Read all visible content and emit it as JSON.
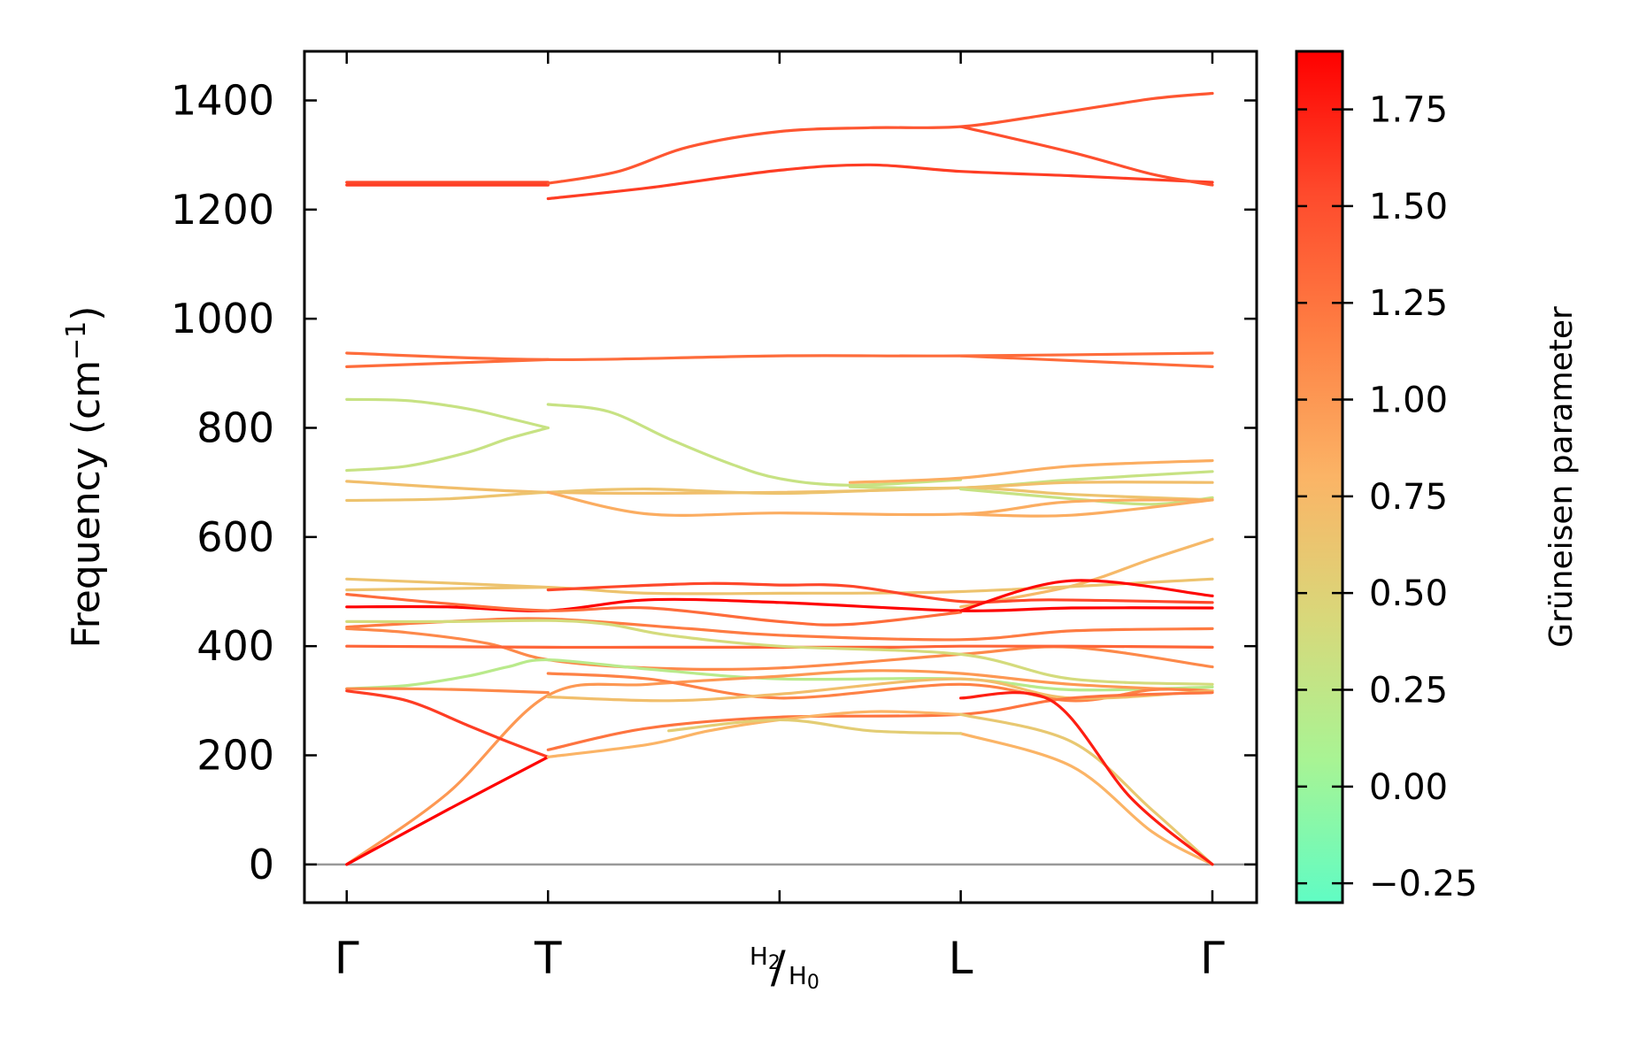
{
  "chart_data": {
    "type": "line",
    "title": "",
    "ylabel": "Frequency (cm⁻¹)",
    "ylabel_main": "Frequency (cm",
    "ylabel_sup": "−1",
    "ylabel_close": ")",
    "xlabel": "",
    "ylim": [
      -70,
      1490
    ],
    "yticks": [
      0,
      200,
      400,
      600,
      800,
      1000,
      1200,
      1400
    ],
    "ytick_labels": [
      "0",
      "200",
      "400",
      "600",
      "800",
      "1000",
      "1200",
      "1400"
    ],
    "kpoints": [
      {
        "pos": 0.0,
        "label": "Γ"
      },
      {
        "pos": 1.0,
        "label": "T"
      },
      {
        "pos": 2.15,
        "label": "H2/H0",
        "num": "H",
        "num_sub": "2",
        "den": "H",
        "den_sub": "0"
      },
      {
        "pos": 3.05,
        "label": "L"
      },
      {
        "pos": 4.3,
        "label": "Γ"
      }
    ],
    "xlim": [
      -0.21,
      4.52
    ],
    "zero_line": {
      "value": 0,
      "color": "#999999"
    },
    "colorbar": {
      "label": "Grüneisen parameter",
      "range": [
        -0.3,
        1.9
      ],
      "ticks": [
        -0.25,
        0.0,
        0.25,
        0.5,
        0.75,
        1.0,
        1.25,
        1.5,
        1.75
      ],
      "tick_labels": [
        "−0.25",
        "0.00",
        "0.25",
        "0.50",
        "0.75",
        "1.00",
        "1.25",
        "1.50",
        "1.75"
      ],
      "colormap": [
        "#60fcc4",
        "#a8f494",
        "#d8d87a",
        "#fbb466",
        "#fe8044",
        "#fe4a2c",
        "#fe0000"
      ]
    },
    "series": [
      {
        "g": 1.55,
        "x": [
          0,
          1
        ],
        "y": [
          1250,
          1250
        ]
      },
      {
        "g": 1.6,
        "x": [
          0,
          1
        ],
        "y": [
          1245,
          1245
        ]
      },
      {
        "g": 1.45,
        "x": [
          1,
          1.35,
          1.7,
          2.15,
          2.6,
          3.05,
          3.5,
          4.0,
          4.3
        ],
        "y": [
          1248,
          1270,
          1315,
          1343,
          1350,
          1352,
          1375,
          1403,
          1413
        ]
      },
      {
        "g": 1.6,
        "x": [
          1,
          1.5,
          2.15,
          2.6,
          3.05,
          3.6,
          4.0,
          4.3
        ],
        "y": [
          1220,
          1240,
          1272,
          1282,
          1270,
          1262,
          1255,
          1250
        ]
      },
      {
        "g": 1.5,
        "x": [
          3.05,
          3.6,
          4.0,
          4.3
        ],
        "y": [
          1352,
          1305,
          1265,
          1245
        ]
      },
      {
        "g": 1.3,
        "x": [
          0,
          1,
          2.15,
          3.05,
          4.3
        ],
        "y": [
          937,
          925,
          932,
          932,
          937
        ]
      },
      {
        "g": 1.3,
        "x": [
          0,
          1
        ],
        "y": [
          912,
          925
        ]
      },
      {
        "g": 1.3,
        "x": [
          3.05,
          4.3
        ],
        "y": [
          932,
          912
        ]
      },
      {
        "g": 0.3,
        "x": [
          0,
          0.3,
          0.6,
          0.8,
          1
        ],
        "y": [
          852,
          850,
          835,
          818,
          800
        ]
      },
      {
        "g": 0.3,
        "x": [
          0,
          0.3,
          0.6,
          0.8,
          1
        ],
        "y": [
          722,
          730,
          755,
          780,
          800
        ]
      },
      {
        "g": 0.3,
        "x": [
          1,
          1.3,
          1.6,
          1.9,
          2.15,
          2.5,
          3.05
        ],
        "y": [
          843,
          830,
          780,
          735,
          707,
          695,
          705
        ]
      },
      {
        "g": 0.3,
        "x": [
          2.5,
          3.05,
          3.6,
          4.3
        ],
        "y": [
          692,
          690,
          705,
          720
        ]
      },
      {
        "g": 0.85,
        "x": [
          2.5,
          3.05,
          3.6,
          4.3
        ],
        "y": [
          700,
          708,
          730,
          740
        ]
      },
      {
        "g": 0.7,
        "x": [
          0,
          1,
          2.15,
          3.05,
          3.6,
          4.3
        ],
        "y": [
          702,
          682,
          682,
          690,
          700,
          700
        ]
      },
      {
        "g": 0.65,
        "x": [
          0,
          0.5,
          1,
          1.5,
          2.15,
          3.05,
          3.6,
          4.3
        ],
        "y": [
          667,
          670,
          682,
          688,
          680,
          690,
          678,
          668
        ]
      },
      {
        "g": 0.3,
        "x": [
          3.05,
          3.6,
          4.0,
          4.3
        ],
        "y": [
          688,
          670,
          660,
          672
        ]
      },
      {
        "g": 0.85,
        "x": [
          1,
          1.5,
          2.15,
          3.05,
          3.6,
          4.3
        ],
        "y": [
          682,
          642,
          644,
          642,
          665,
          668
        ]
      },
      {
        "g": 0.85,
        "x": [
          3.05,
          3.6,
          4.3
        ],
        "y": [
          642,
          640,
          668
        ]
      },
      {
        "g": 0.75,
        "x": [
          3.05,
          3.6,
          4.0,
          4.3
        ],
        "y": [
          472,
          510,
          560,
          596
        ]
      },
      {
        "g": 0.65,
        "x": [
          0,
          1,
          1.5,
          2.15,
          3.05,
          4.3
        ],
        "y": [
          523,
          508,
          497,
          497,
          500,
          523
        ]
      },
      {
        "g": 0.65,
        "x": [
          0,
          1
        ],
        "y": [
          503,
          508
        ]
      },
      {
        "g": 1.55,
        "x": [
          1,
          1.4,
          1.8,
          2.15,
          2.5,
          3.05,
          3.5,
          4.3
        ],
        "y": [
          503,
          510,
          515,
          512,
          510,
          482,
          485,
          480
        ]
      },
      {
        "g": 1.9,
        "x": [
          0,
          0.5,
          1,
          1.5,
          2.15,
          3.05,
          3.6,
          4.3
        ],
        "y": [
          472,
          472,
          465,
          485,
          480,
          465,
          470,
          470
        ]
      },
      {
        "g": 1.3,
        "x": [
          0,
          0.5,
          1,
          1.5,
          2.15,
          2.5,
          3.05
        ],
        "y": [
          495,
          478,
          465,
          470,
          445,
          440,
          462
        ]
      },
      {
        "g": 1.85,
        "x": [
          3.05,
          3.6,
          4.3
        ],
        "y": [
          465,
          520,
          492
        ]
      },
      {
        "g": 1.2,
        "x": [
          0,
          0.5,
          1,
          1.7,
          2.15,
          3.05,
          3.6,
          4.3
        ],
        "y": [
          435,
          445,
          450,
          432,
          420,
          412,
          428,
          432
        ]
      },
      {
        "g": 1.1,
        "x": [
          0,
          0.3,
          0.7,
          1,
          1.5,
          2.15,
          3.05,
          3.6,
          4.3
        ],
        "y": [
          432,
          425,
          405,
          375,
          360,
          360,
          385,
          398,
          362
        ]
      },
      {
        "g": 1.35,
        "x": [
          0,
          1,
          1.5,
          2.15,
          2.7,
          3.05,
          3.6,
          4.3
        ],
        "y": [
          400,
          398,
          398,
          398,
          398,
          400,
          400,
          398
        ]
      },
      {
        "g": 0.4,
        "x": [
          0,
          0.5,
          1,
          1.3,
          1.6,
          2.15,
          3.05,
          3.6,
          4.3
        ],
        "y": [
          445,
          445,
          447,
          440,
          420,
          400,
          385,
          340,
          330
        ]
      },
      {
        "g": 0.2,
        "x": [
          0,
          0.3,
          0.6,
          0.8,
          1,
          1.5,
          2.15,
          3.05,
          3.6,
          4.3
        ],
        "y": [
          322,
          328,
          345,
          362,
          375,
          358,
          340,
          340,
          320,
          325
        ]
      },
      {
        "g": 1.1,
        "x": [
          0,
          0.3,
          0.6,
          1
        ],
        "y": [
          322,
          322,
          320,
          315
        ]
      },
      {
        "g": 1.0,
        "x": [
          0,
          0.5,
          1,
          1.5,
          2.15,
          2.6,
          3.05,
          3.6,
          4.3
        ],
        "y": [
          0,
          130,
          310,
          330,
          345,
          355,
          350,
          330,
          318
        ]
      },
      {
        "g": 1.15,
        "x": [
          1,
          1.5,
          2.15,
          3.05,
          3.6,
          4.0,
          4.3
        ],
        "y": [
          350,
          340,
          305,
          330,
          300,
          320,
          318
        ]
      },
      {
        "g": 0.7,
        "x": [
          1,
          1.6,
          2.15,
          3.05,
          3.6,
          4.3
        ],
        "y": [
          307,
          300,
          312,
          340,
          305,
          318
        ]
      },
      {
        "g": 1.6,
        "x": [
          0,
          0.3,
          0.6,
          0.8,
          1
        ],
        "y": [
          318,
          300,
          255,
          225,
          197
        ]
      },
      {
        "g": 1.9,
        "x": [
          0,
          0.5,
          1
        ],
        "y": [
          0,
          100,
          197
        ]
      },
      {
        "g": 1.25,
        "x": [
          1,
          1.5,
          2.15,
          3.05,
          3.6,
          4.3
        ],
        "y": [
          210,
          250,
          270,
          275,
          305,
          315
        ]
      },
      {
        "g": 0.8,
        "x": [
          1,
          1.5,
          1.8,
          2.15,
          2.6,
          3.05
        ],
        "y": [
          197,
          220,
          245,
          265,
          280,
          275
        ]
      },
      {
        "g": 0.6,
        "x": [
          3.05,
          3.6,
          4.0,
          4.3
        ],
        "y": [
          275,
          225,
          100,
          0
        ]
      },
      {
        "g": 0.8,
        "x": [
          3.05,
          3.6,
          4.0,
          4.3
        ],
        "y": [
          240,
          180,
          60,
          0
        ]
      },
      {
        "g": 0.55,
        "x": [
          1.6,
          2.15,
          2.6,
          3.05
        ],
        "y": [
          245,
          265,
          245,
          240
        ]
      },
      {
        "g": 1.75,
        "x": [
          3.05,
          3.5,
          3.9,
          4.3
        ],
        "y": [
          305,
          300,
          120,
          0
        ]
      }
    ]
  }
}
